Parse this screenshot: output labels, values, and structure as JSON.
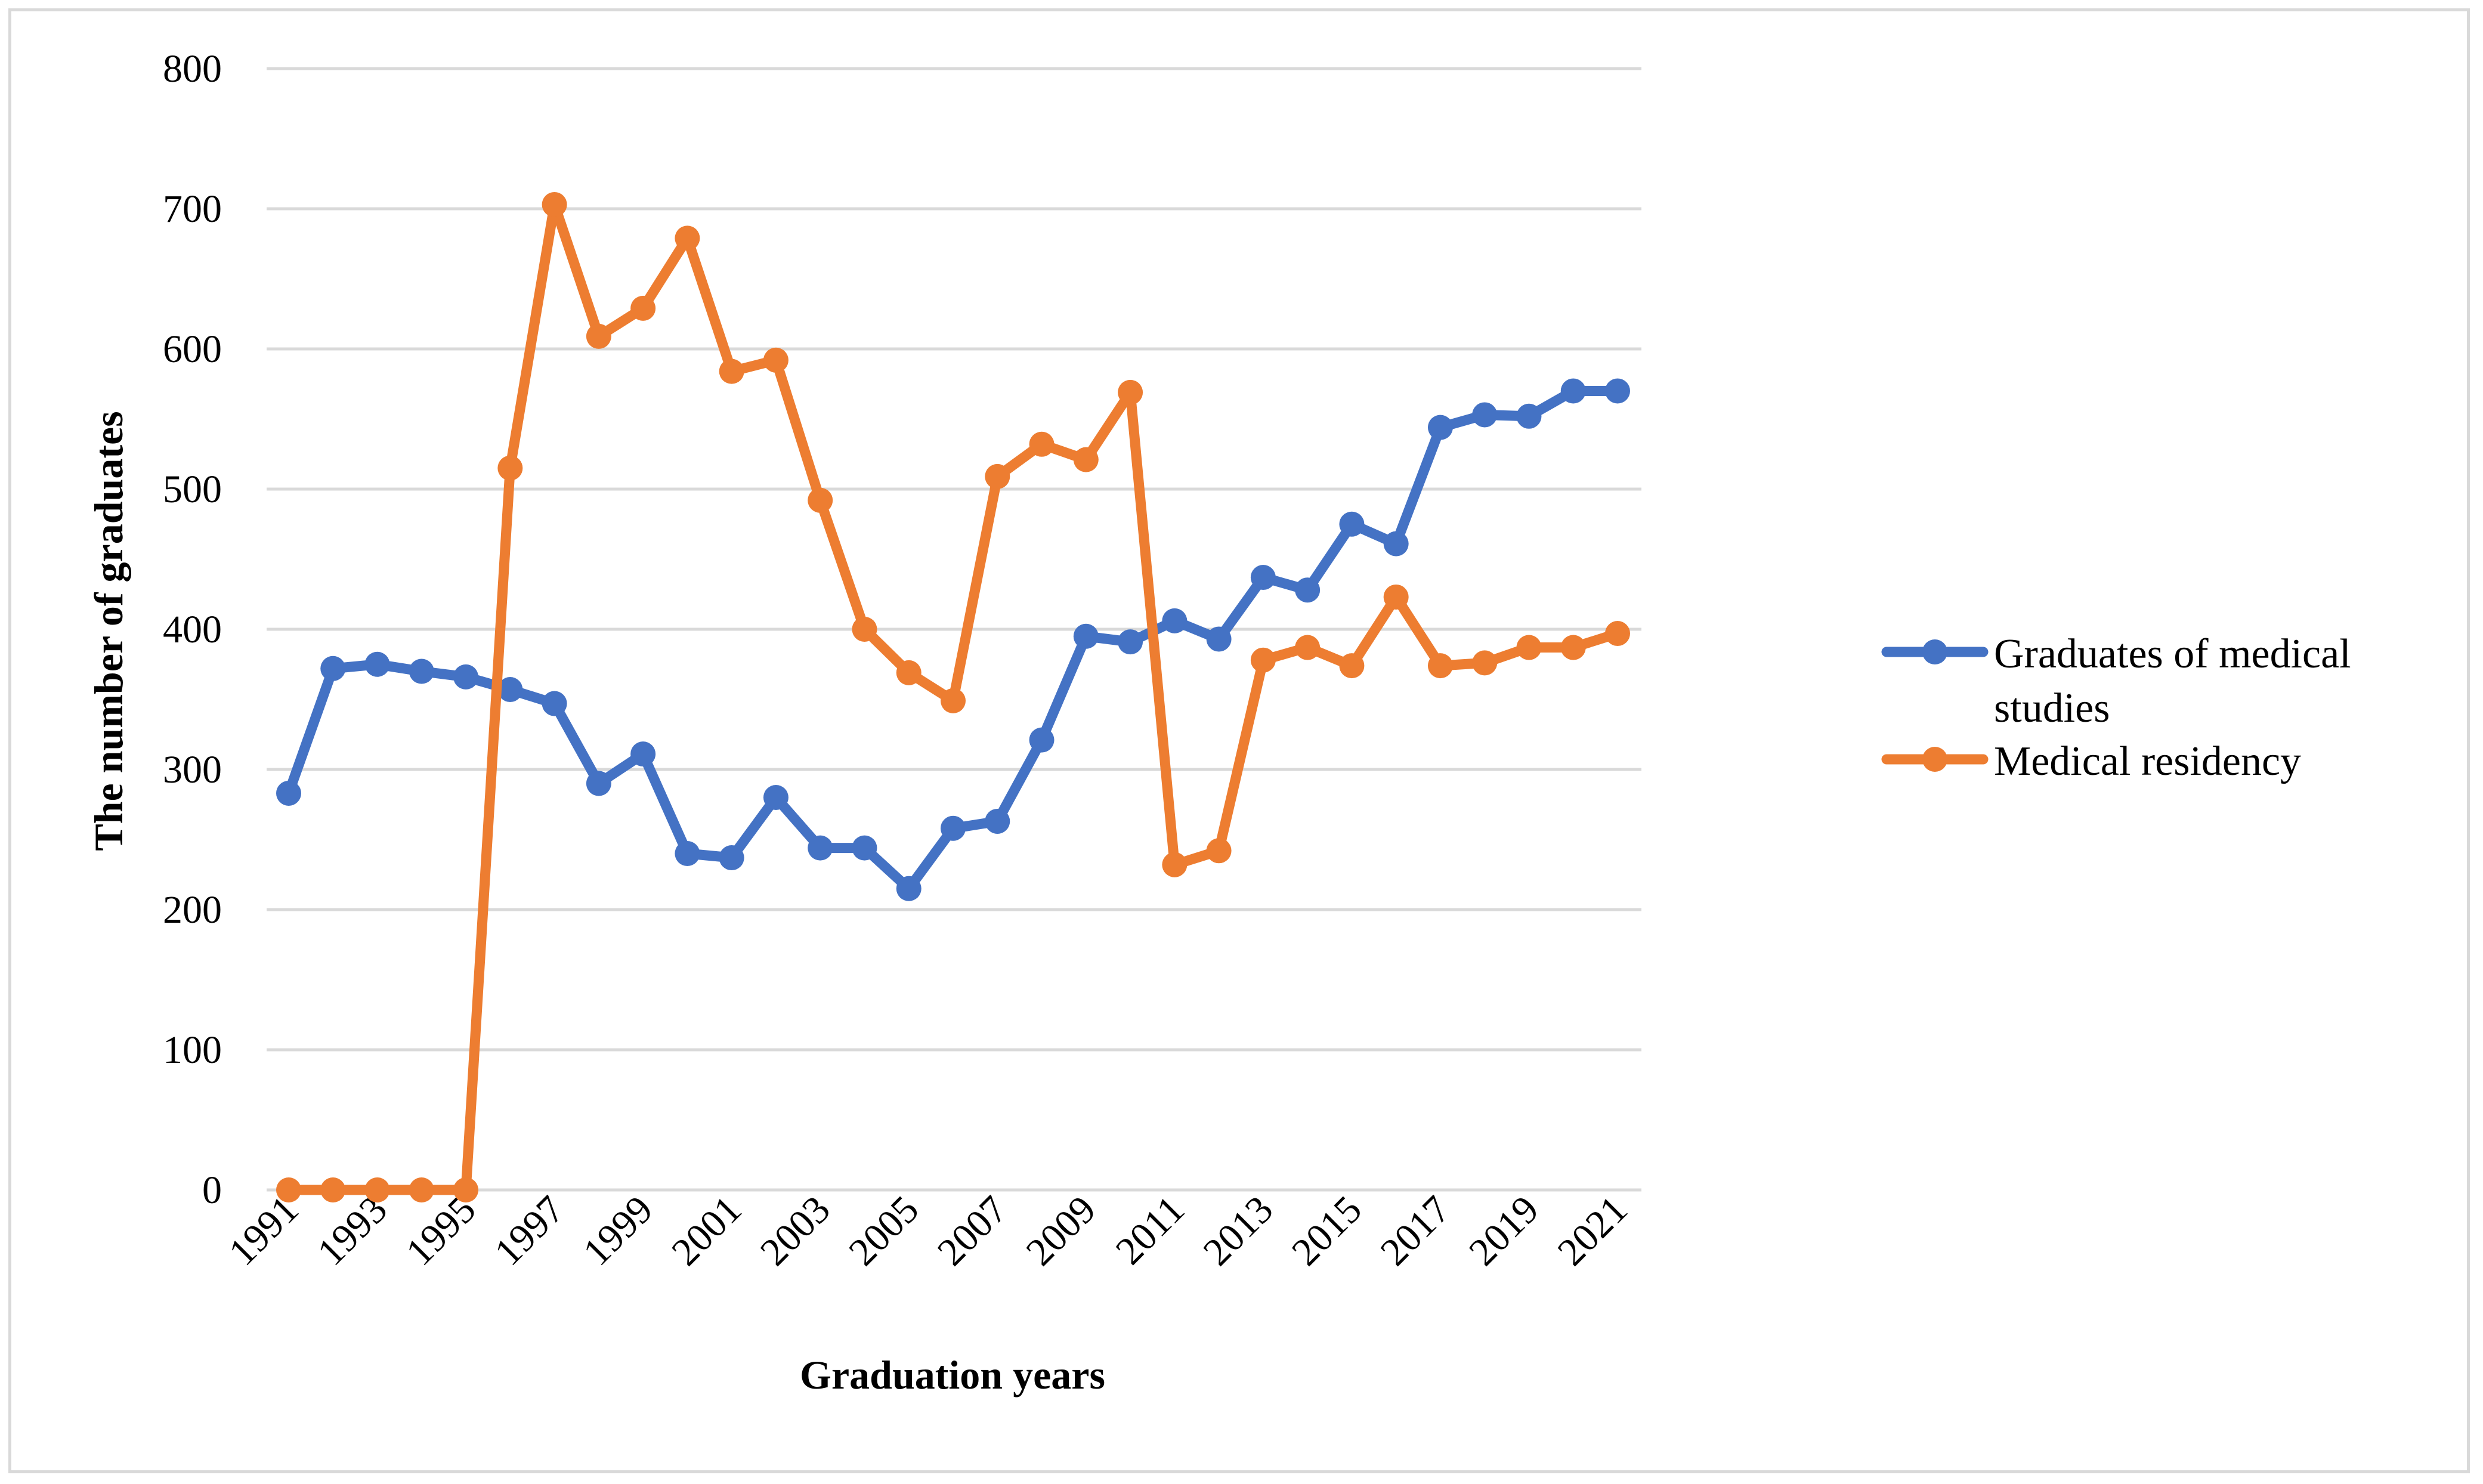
{
  "chart_data": {
    "type": "line",
    "title": "",
    "xlabel": "Graduation years",
    "ylabel": "The number of graduates",
    "ylim": [
      0,
      800
    ],
    "yticks": [
      0,
      100,
      200,
      300,
      400,
      500,
      600,
      700,
      800
    ],
    "grid": true,
    "legend_position": "right",
    "x": [
      1991,
      1992,
      1993,
      1994,
      1995,
      1996,
      1997,
      1998,
      1999,
      2000,
      2001,
      2002,
      2003,
      2004,
      2005,
      2006,
      2007,
      2008,
      2009,
      2010,
      2011,
      2012,
      2013,
      2014,
      2015,
      2016,
      2017,
      2018,
      2019,
      2020,
      2021
    ],
    "xtick_labels": [
      "1991",
      "1993",
      "1995",
      "1997",
      "1999",
      "2001",
      "2003",
      "2005",
      "2007",
      "2009",
      "2011",
      "2013",
      "2015",
      "2017",
      "2019",
      "2021"
    ],
    "series": [
      {
        "name": "Graduates of medical studies",
        "legend_lines": [
          "Graduates of medical",
          "studies"
        ],
        "color": "#4472C4",
        "values": [
          283,
          372,
          375,
          370,
          366,
          357,
          347,
          290,
          311,
          240,
          237,
          280,
          244,
          244,
          215,
          258,
          263,
          321,
          395,
          391,
          406,
          393,
          437,
          428,
          475,
          461,
          544,
          553,
          552,
          570,
          570
        ]
      },
      {
        "name": "Medical residency",
        "legend_lines": [
          "Medical residency"
        ],
        "color": "#ED7D31",
        "values": [
          0,
          0,
          0,
          0,
          0,
          515,
          703,
          609,
          629,
          679,
          584,
          592,
          492,
          400,
          369,
          349,
          509,
          532,
          521,
          569,
          232,
          242,
          378,
          387,
          374,
          423,
          374,
          376,
          387,
          387,
          397
        ]
      }
    ]
  }
}
